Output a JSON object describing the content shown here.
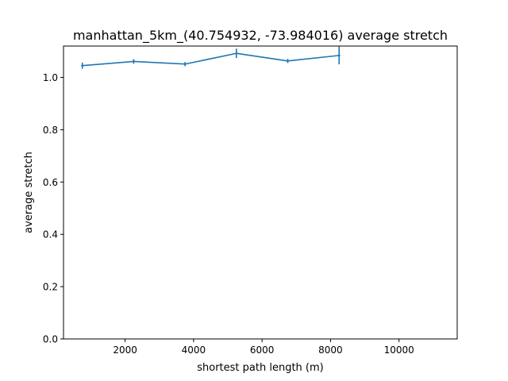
{
  "chart_data": {
    "type": "line",
    "title": "manhattan_5km_(40.754932, -73.984016) average stretch",
    "xlabel": "shortest path length (m)",
    "ylabel": "average stretch",
    "xlim": [
      200,
      11700
    ],
    "ylim": [
      0,
      1.12
    ],
    "x_ticks": [
      2000,
      4000,
      6000,
      8000,
      10000
    ],
    "x_tick_labels": [
      "2000",
      "4000",
      "6000",
      "8000",
      "10000"
    ],
    "y_ticks": [
      0.0,
      0.2,
      0.4,
      0.6,
      0.8,
      1.0
    ],
    "y_tick_labels": [
      "0.0",
      "0.2",
      "0.4",
      "0.6",
      "0.8",
      "1.0"
    ],
    "grid": false,
    "series": [
      {
        "color": "#1f77b4",
        "x": [
          750,
          2250,
          3750,
          5250,
          6750,
          8250
        ],
        "y": [
          1.045,
          1.061,
          1.051,
          1.092,
          1.063,
          1.084
        ],
        "yerr": [
          0.012,
          0.009,
          0.008,
          0.018,
          0.008,
          0.034
        ]
      }
    ]
  }
}
